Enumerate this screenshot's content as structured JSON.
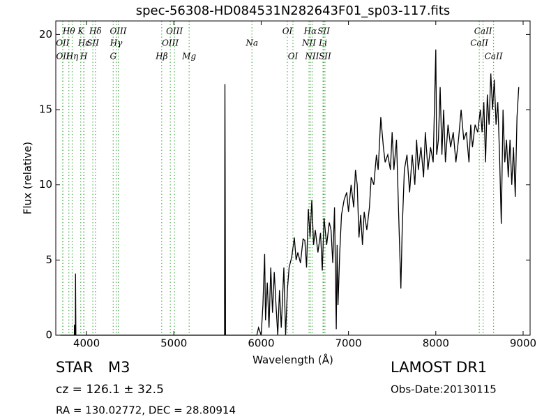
{
  "chart_data": {
    "type": "line",
    "title": "spec-56308-HD084531N282643F01_sp03-117.fits",
    "x_label": "Wavelength (Å)",
    "y_label": "Flux (relative)",
    "xlim": [
      3648,
      9080
    ],
    "ylim": [
      0,
      20.9
    ],
    "xticks": [
      4000,
      5000,
      6000,
      7000,
      8000,
      9000
    ],
    "yticks": [
      0,
      5,
      10,
      15,
      20
    ],
    "color": "#000000",
    "line_color": "#2ca02c",
    "x": [
      3700,
      3860,
      3862,
      3866,
      3872,
      3874,
      3878,
      5580,
      5585,
      5592,
      5950,
      5970,
      6000,
      6020,
      6040,
      6050,
      6070,
      6090,
      6110,
      6130,
      6150,
      6170,
      6190,
      6210,
      6230,
      6260,
      6280,
      6300,
      6320,
      6350,
      6380,
      6400,
      6420,
      6450,
      6480,
      6500,
      6520,
      6540,
      6560,
      6580,
      6600,
      6620,
      6650,
      6680,
      6700,
      6720,
      6750,
      6780,
      6800,
      6820,
      6840,
      6860,
      6870,
      6880,
      6900,
      6920,
      6950,
      6980,
      7000,
      7030,
      7060,
      7080,
      7100,
      7120,
      7140,
      7160,
      7180,
      7210,
      7240,
      7260,
      7290,
      7320,
      7340,
      7370,
      7400,
      7420,
      7450,
      7480,
      7500,
      7520,
      7550,
      7580,
      7600,
      7615,
      7640,
      7670,
      7700,
      7730,
      7760,
      7780,
      7800,
      7830,
      7860,
      7880,
      7910,
      7940,
      7970,
      8000,
      8010,
      8030,
      8050,
      8070,
      8090,
      8110,
      8140,
      8170,
      8200,
      8230,
      8260,
      8290,
      8320,
      8350,
      8380,
      8400,
      8420,
      8450,
      8480,
      8510,
      8530,
      8550,
      8570,
      8590,
      8610,
      8630,
      8650,
      8670,
      8690,
      8710,
      8730,
      8750,
      8770,
      8790,
      8810,
      8830,
      8850,
      8870,
      8890,
      8910,
      8930,
      8950
    ],
    "values": [
      0,
      0,
      0.7,
      0,
      0,
      4.1,
      0,
      0,
      16.7,
      0,
      0,
      0.5,
      0,
      2,
      5.4,
      1,
      3.5,
      0.5,
      4.5,
      1.5,
      4.2,
      2,
      0,
      3,
      0.5,
      4.5,
      0,
      3,
      4.5,
      5.2,
      6.5,
      5,
      5.5,
      4.8,
      6.4,
      6.3,
      4.5,
      8.4,
      6.5,
      9,
      6,
      7,
      5.5,
      6.8,
      4.3,
      7.8,
      6,
      7.5,
      7,
      4.8,
      8.5,
      0.4,
      6,
      2,
      5.5,
      8,
      9,
      9.5,
      8.2,
      10,
      8.5,
      11,
      10,
      6.5,
      8,
      6,
      8.2,
      7,
      8.5,
      10.5,
      10,
      12,
      11,
      14.5,
      12.5,
      11.5,
      12,
      11,
      13.5,
      11,
      13,
      7,
      3.1,
      7,
      11,
      12,
      9.5,
      12,
      10,
      13,
      11,
      12.5,
      10.5,
      13.5,
      11,
      12.5,
      11.5,
      19,
      12,
      13,
      16.5,
      12,
      15,
      11.5,
      14,
      12.5,
      13.5,
      11.5,
      13,
      15,
      13,
      13.5,
      11.5,
      14,
      12.5,
      14,
      13.5,
      15,
      13.5,
      15.5,
      11.5,
      16,
      14,
      17.4,
      15,
      17,
      14,
      15.5,
      12,
      7.4,
      15,
      11.5,
      13,
      10.5,
      13,
      10,
      12.5,
      9.2,
      14.5,
      16.5
    ],
    "spectral_lines": [
      [
        {
          "label": "Hθ",
          "wavelength": 3798
        },
        {
          "label": "K",
          "wavelength": 3934
        },
        {
          "label": "Hδ",
          "wavelength": 4102
        },
        {
          "label": "OIII",
          "wavelength": 4363
        },
        {
          "label": "OIII",
          "wavelength": 5007
        },
        {
          "label": "OI",
          "wavelength": 6300
        },
        {
          "label": "Hα",
          "wavelength": 6563
        },
        {
          "label": "SII",
          "wavelength": 6716
        },
        {
          "label": "CaII",
          "wavelength": 8542
        }
      ],
      [
        {
          "label": "OII",
          "wavelength": 3727
        },
        {
          "label": "Hε",
          "wavelength": 3970
        },
        {
          "label": "SII",
          "wavelength": 4072
        },
        {
          "label": "Hγ",
          "wavelength": 4340
        },
        {
          "label": "OIII",
          "wavelength": 4959
        },
        {
          "label": "Na",
          "wavelength": 5894
        },
        {
          "label": "NII",
          "wavelength": 6548
        },
        {
          "label": "Li",
          "wavelength": 6708
        },
        {
          "label": "CaII",
          "wavelength": 8498
        }
      ],
      [
        {
          "label": "OII",
          "wavelength": 3729
        },
        {
          "label": "Hη",
          "wavelength": 3835
        },
        {
          "label": "H",
          "wavelength": 3968
        },
        {
          "label": "G",
          "wavelength": 4305
        },
        {
          "label": "Hβ",
          "wavelength": 4861
        },
        {
          "label": "Mg",
          "wavelength": 5175
        },
        {
          "label": "OI",
          "wavelength": 6364
        },
        {
          "label": "NII",
          "wavelength": 6583
        },
        {
          "label": "SII",
          "wavelength": 6731
        },
        {
          "label": "CaII",
          "wavelength": 8662
        }
      ]
    ]
  },
  "info": {
    "class": "STAR",
    "subclass": "M3",
    "cz": "cz = 126.1 ± 32.5",
    "coords": "RA = 130.02772, DEC = 28.80914",
    "survey": "LAMOST DR1",
    "obs_date": "Obs-Date:20130115"
  }
}
